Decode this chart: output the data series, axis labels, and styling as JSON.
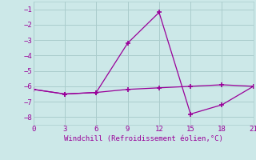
{
  "xlabel": "Windchill (Refroidissement éolien,°C)",
  "line1_x": [
    0,
    3,
    6,
    9,
    12,
    15,
    18,
    21
  ],
  "line1_y": [
    -6.2,
    -6.5,
    -6.4,
    -3.2,
    -1.2,
    -7.8,
    -7.2,
    -6.0
  ],
  "line2_x": [
    0,
    3,
    6,
    9,
    12,
    15,
    18,
    21
  ],
  "line2_y": [
    -6.2,
    -6.5,
    -6.4,
    -6.2,
    -6.1,
    -6.0,
    -5.9,
    -6.0
  ],
  "line_color": "#990099",
  "bg_color": "#cce8e8",
  "grid_color": "#aacccc",
  "xlim": [
    0,
    21
  ],
  "ylim": [
    -8.5,
    -0.5
  ],
  "xticks": [
    0,
    3,
    6,
    9,
    12,
    15,
    18,
    21
  ],
  "yticks": [
    -8,
    -7,
    -6,
    -5,
    -4,
    -3,
    -2,
    -1
  ],
  "marker": "+"
}
